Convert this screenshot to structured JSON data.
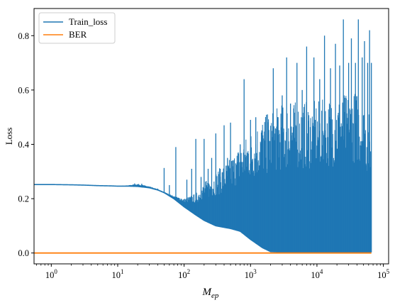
{
  "chart_data": {
    "type": "line",
    "xscale": "log",
    "xlim": [
      0.55,
      120000
    ],
    "ylim": [
      -0.04,
      0.9
    ],
    "ylabel": "Loss",
    "xlabel_base": "M",
    "xlabel_sub": "ep",
    "legend_position": "top-left",
    "grid": false,
    "y_ticks": [
      0.0,
      0.2,
      0.4,
      0.6,
      0.8
    ],
    "y_tick_labels": [
      "0.0",
      "0.2",
      "0.4",
      "0.6",
      "0.8"
    ],
    "x_ticks": [
      {
        "mantissa": "10",
        "exp": "0",
        "value": 1
      },
      {
        "mantissa": "10",
        "exp": "1",
        "value": 10
      },
      {
        "mantissa": "10",
        "exp": "2",
        "value": 100
      },
      {
        "mantissa": "10",
        "exp": "3",
        "value": 1000
      },
      {
        "mantissa": "10",
        "exp": "4",
        "value": 10000
      },
      {
        "mantissa": "10",
        "exp": "5",
        "value": 100000
      }
    ],
    "series": [
      {
        "name": "Train_loss",
        "color": "#1f77b4",
        "x": [
          0.55,
          1,
          2,
          3,
          5,
          8,
          10,
          15,
          20,
          30,
          40,
          50,
          70,
          100,
          150,
          200,
          300,
          500,
          700,
          1000,
          1500,
          2000,
          3000,
          5000,
          10000,
          20000,
          40000,
          66000
        ],
        "baseline_lower": [
          0.252,
          0.252,
          0.251,
          0.25,
          0.248,
          0.247,
          0.246,
          0.246,
          0.245,
          0.24,
          0.232,
          0.222,
          0.2,
          0.17,
          0.14,
          0.12,
          0.1,
          0.09,
          0.08,
          0.05,
          0.02,
          0.005,
          0.003,
          0.002,
          0.002,
          0.002,
          0.002,
          0.002
        ],
        "envelope_upper": [
          0.252,
          0.252,
          0.251,
          0.25,
          0.248,
          0.247,
          0.246,
          0.25,
          0.255,
          0.245,
          0.235,
          0.225,
          0.21,
          0.2,
          0.22,
          0.26,
          0.3,
          0.35,
          0.4,
          0.45,
          0.5,
          0.52,
          0.55,
          0.56,
          0.56,
          0.58,
          0.6,
          0.5
        ],
        "spikes": [
          [
            18,
            0.256
          ],
          [
            23,
            0.255
          ],
          [
            40,
            0.237
          ],
          [
            50,
            0.313
          ],
          [
            60,
            0.25
          ],
          [
            75,
            0.39
          ],
          [
            90,
            0.2
          ],
          [
            110,
            0.27
          ],
          [
            130,
            0.31
          ],
          [
            150,
            0.42
          ],
          [
            180,
            0.28
          ],
          [
            200,
            0.42
          ],
          [
            230,
            0.31
          ],
          [
            260,
            0.35
          ],
          [
            300,
            0.44
          ],
          [
            350,
            0.31
          ],
          [
            400,
            0.47
          ],
          [
            450,
            0.35
          ],
          [
            500,
            0.48
          ],
          [
            600,
            0.33
          ],
          [
            700,
            0.4
          ],
          [
            800,
            0.64
          ],
          [
            900,
            0.37
          ],
          [
            1000,
            0.49
          ],
          [
            1200,
            0.5
          ],
          [
            1500,
            0.45
          ],
          [
            1800,
            0.51
          ],
          [
            2200,
            0.68
          ],
          [
            2600,
            0.5
          ],
          [
            3000,
            0.58
          ],
          [
            3500,
            0.72
          ],
          [
            4000,
            0.55
          ],
          [
            5000,
            0.7
          ],
          [
            6000,
            0.6
          ],
          [
            7000,
            0.76
          ],
          [
            9000,
            0.72
          ],
          [
            11000,
            0.64
          ],
          [
            13000,
            0.8
          ],
          [
            16000,
            0.68
          ],
          [
            19000,
            0.77
          ],
          [
            22000,
            0.69
          ],
          [
            25000,
            0.86
          ],
          [
            30000,
            0.7
          ],
          [
            33000,
            0.79
          ],
          [
            38000,
            0.7
          ],
          [
            42000,
            0.86
          ],
          [
            48000,
            0.72
          ],
          [
            52000,
            0.78
          ],
          [
            58000,
            0.7
          ],
          [
            62000,
            0.82
          ],
          [
            66000,
            0.7
          ]
        ]
      },
      {
        "name": "BER",
        "color": "#ff7f0e",
        "x": [
          0.55,
          66000
        ],
        "y": [
          0.0,
          0.0
        ]
      }
    ]
  }
}
